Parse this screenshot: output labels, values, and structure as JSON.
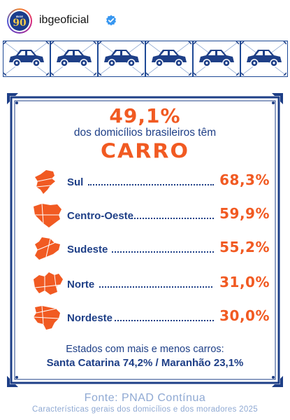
{
  "header": {
    "username": "ibgeoficial",
    "avatar_small_text": "IBGE",
    "avatar_big_text": "90"
  },
  "tiles": {
    "count": 6,
    "icon": "car-icon"
  },
  "infographic": {
    "headline_pct": "49,1%",
    "headline_sub": "dos domicílios brasileiros têm",
    "headline_word": "CARRO",
    "regions": [
      {
        "name": "Sul",
        "value": "68,3%",
        "icon": "sul-map-icon"
      },
      {
        "name": "Centro-Oeste",
        "value": "59,9%",
        "icon": "centro-oeste-map-icon"
      },
      {
        "name": "Sudeste",
        "value": "55,2%",
        "icon": "sudeste-map-icon"
      },
      {
        "name": "Norte",
        "value": "31,0%",
        "icon": "norte-map-icon"
      },
      {
        "name": "Nordeste",
        "value": "30,0%",
        "icon": "nordeste-map-icon"
      }
    ],
    "states_title": "Estados com mais e menos carros:",
    "states_values": "Santa Catarina 74,2% / Maranhão 23,1%"
  },
  "footer": {
    "source": "Fonte: PNAD Contínua",
    "caption": "Características gerais dos domicílios e dos moradores 2025"
  },
  "colors": {
    "blue": "#1e3f87",
    "orange": "#f15a22",
    "light_blue": "#8fa9d3"
  }
}
